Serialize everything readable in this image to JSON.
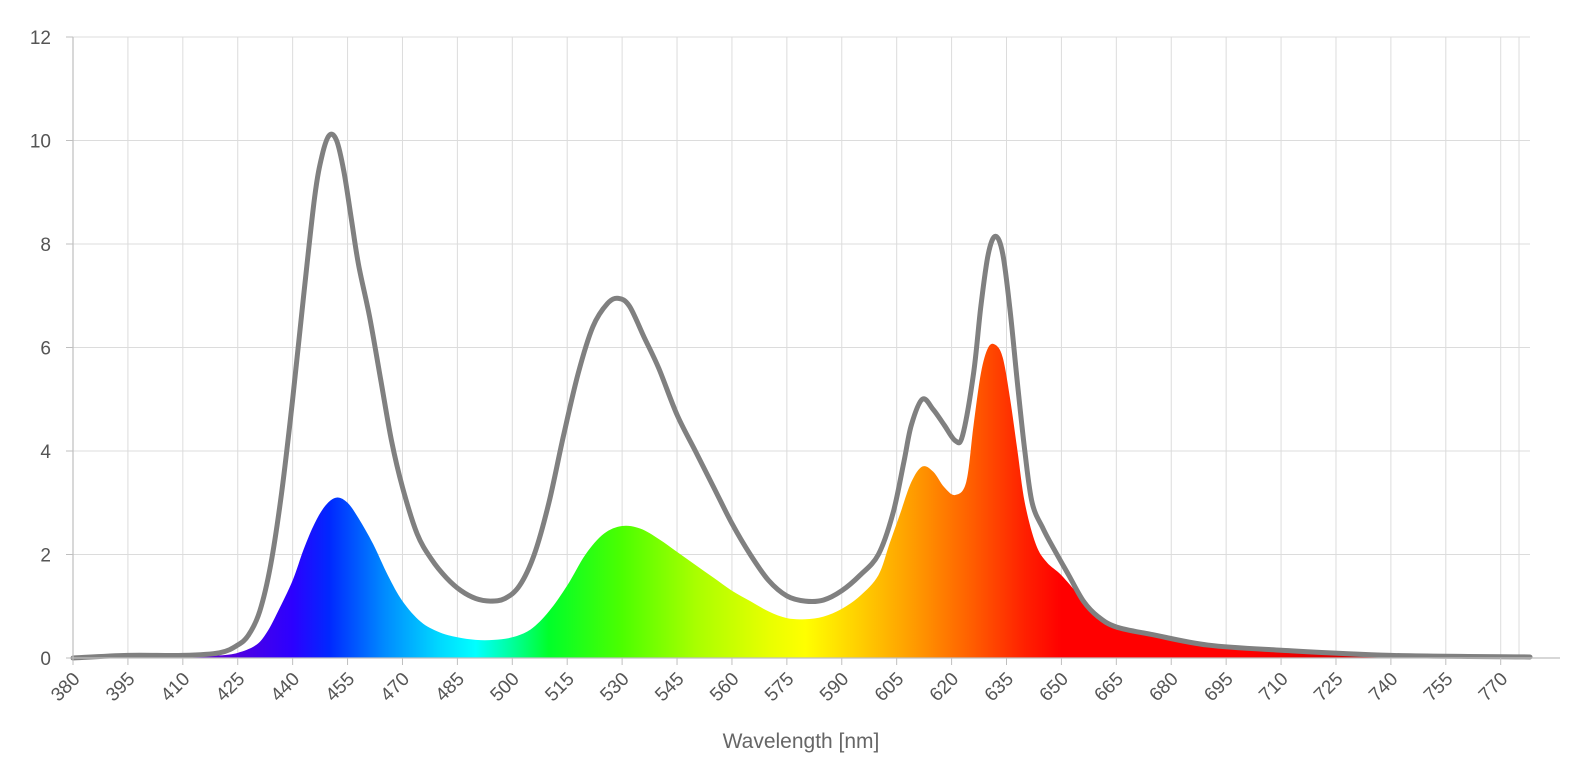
{
  "chart_data": {
    "type": "area",
    "xlabel": "Wavelength [nm]",
    "ylabel": "",
    "xlim": [
      380,
      778
    ],
    "ylim": [
      0,
      12
    ],
    "x_ticks": [
      380,
      395,
      410,
      425,
      440,
      455,
      470,
      485,
      500,
      515,
      530,
      545,
      560,
      575,
      590,
      605,
      620,
      635,
      650,
      665,
      680,
      695,
      710,
      725,
      740,
      755,
      770
    ],
    "y_ticks": [
      0,
      2,
      4,
      6,
      8,
      10,
      12
    ],
    "grid": true,
    "series": [
      {
        "style": "gray-line",
        "color": "#808080",
        "points": [
          [
            380,
            0.0
          ],
          [
            395,
            0.05
          ],
          [
            410,
            0.05
          ],
          [
            420,
            0.1
          ],
          [
            425,
            0.25
          ],
          [
            428,
            0.45
          ],
          [
            431,
            0.9
          ],
          [
            434,
            1.8
          ],
          [
            437,
            3.2
          ],
          [
            440,
            5.0
          ],
          [
            443,
            7.0
          ],
          [
            446,
            8.9
          ],
          [
            448,
            9.7
          ],
          [
            450,
            10.1
          ],
          [
            452,
            10.0
          ],
          [
            454,
            9.4
          ],
          [
            456,
            8.5
          ],
          [
            458,
            7.6
          ],
          [
            461,
            6.6
          ],
          [
            464,
            5.4
          ],
          [
            467,
            4.2
          ],
          [
            470,
            3.3
          ],
          [
            474,
            2.4
          ],
          [
            478,
            1.9
          ],
          [
            482,
            1.55
          ],
          [
            486,
            1.3
          ],
          [
            490,
            1.15
          ],
          [
            494,
            1.1
          ],
          [
            498,
            1.15
          ],
          [
            502,
            1.4
          ],
          [
            506,
            2.0
          ],
          [
            510,
            3.0
          ],
          [
            514,
            4.3
          ],
          [
            518,
            5.5
          ],
          [
            522,
            6.4
          ],
          [
            526,
            6.85
          ],
          [
            529,
            6.95
          ],
          [
            532,
            6.8
          ],
          [
            536,
            6.2
          ],
          [
            540,
            5.6
          ],
          [
            545,
            4.7
          ],
          [
            550,
            4.0
          ],
          [
            555,
            3.3
          ],
          [
            560,
            2.6
          ],
          [
            565,
            2.0
          ],
          [
            570,
            1.5
          ],
          [
            575,
            1.2
          ],
          [
            580,
            1.1
          ],
          [
            585,
            1.12
          ],
          [
            590,
            1.3
          ],
          [
            595,
            1.6
          ],
          [
            600,
            2.0
          ],
          [
            604,
            2.8
          ],
          [
            607,
            3.8
          ],
          [
            609,
            4.5
          ],
          [
            612,
            5.0
          ],
          [
            615,
            4.8
          ],
          [
            618,
            4.5
          ],
          [
            621,
            4.2
          ],
          [
            623,
            4.3
          ],
          [
            626,
            5.5
          ],
          [
            628,
            6.8
          ],
          [
            630,
            7.8
          ],
          [
            632,
            8.15
          ],
          [
            634,
            7.8
          ],
          [
            636,
            6.7
          ],
          [
            638,
            5.3
          ],
          [
            640,
            4.0
          ],
          [
            642,
            3.0
          ],
          [
            645,
            2.5
          ],
          [
            648,
            2.1
          ],
          [
            652,
            1.6
          ],
          [
            656,
            1.1
          ],
          [
            660,
            0.8
          ],
          [
            665,
            0.6
          ],
          [
            675,
            0.45
          ],
          [
            690,
            0.25
          ],
          [
            710,
            0.15
          ],
          [
            740,
            0.05
          ],
          [
            778,
            0.02
          ]
        ]
      },
      {
        "style": "spectrum-fill",
        "points": [
          [
            380,
            0.0
          ],
          [
            395,
            0.0
          ],
          [
            410,
            0.02
          ],
          [
            420,
            0.05
          ],
          [
            425,
            0.1
          ],
          [
            430,
            0.25
          ],
          [
            433,
            0.5
          ],
          [
            436,
            0.9
          ],
          [
            440,
            1.5
          ],
          [
            443,
            2.1
          ],
          [
            446,
            2.6
          ],
          [
            449,
            2.95
          ],
          [
            452,
            3.1
          ],
          [
            455,
            3.0
          ],
          [
            458,
            2.7
          ],
          [
            462,
            2.2
          ],
          [
            466,
            1.6
          ],
          [
            470,
            1.1
          ],
          [
            475,
            0.7
          ],
          [
            480,
            0.5
          ],
          [
            485,
            0.4
          ],
          [
            490,
            0.35
          ],
          [
            495,
            0.35
          ],
          [
            500,
            0.4
          ],
          [
            505,
            0.55
          ],
          [
            510,
            0.9
          ],
          [
            515,
            1.4
          ],
          [
            520,
            2.0
          ],
          [
            525,
            2.4
          ],
          [
            530,
            2.55
          ],
          [
            535,
            2.5
          ],
          [
            540,
            2.3
          ],
          [
            545,
            2.05
          ],
          [
            550,
            1.8
          ],
          [
            555,
            1.55
          ],
          [
            560,
            1.3
          ],
          [
            565,
            1.1
          ],
          [
            570,
            0.9
          ],
          [
            575,
            0.77
          ],
          [
            580,
            0.75
          ],
          [
            585,
            0.8
          ],
          [
            590,
            0.95
          ],
          [
            595,
            1.2
          ],
          [
            600,
            1.6
          ],
          [
            603,
            2.2
          ],
          [
            606,
            2.8
          ],
          [
            609,
            3.4
          ],
          [
            612,
            3.7
          ],
          [
            615,
            3.6
          ],
          [
            618,
            3.3
          ],
          [
            621,
            3.15
          ],
          [
            624,
            3.4
          ],
          [
            626,
            4.5
          ],
          [
            628,
            5.5
          ],
          [
            630,
            6.0
          ],
          [
            632,
            6.05
          ],
          [
            634,
            5.8
          ],
          [
            636,
            5.0
          ],
          [
            638,
            4.0
          ],
          [
            640,
            3.0
          ],
          [
            643,
            2.2
          ],
          [
            646,
            1.85
          ],
          [
            650,
            1.6
          ],
          [
            655,
            1.2
          ],
          [
            660,
            0.85
          ],
          [
            665,
            0.6
          ],
          [
            675,
            0.45
          ],
          [
            690,
            0.25
          ],
          [
            710,
            0.15
          ],
          [
            740,
            0.05
          ],
          [
            778,
            0.02
          ]
        ]
      }
    ]
  }
}
